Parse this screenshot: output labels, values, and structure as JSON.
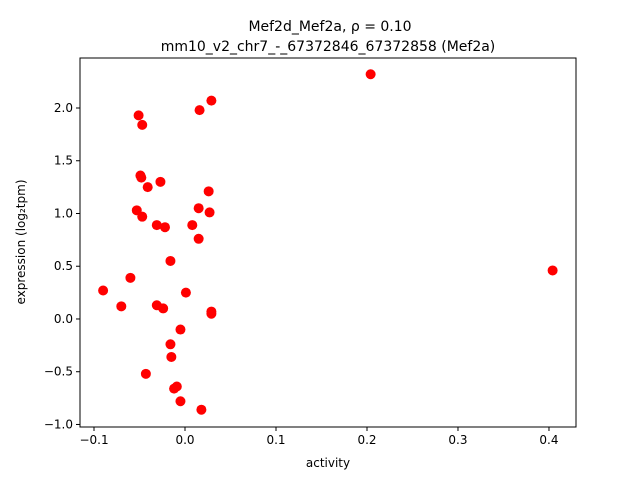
{
  "chart_data": {
    "type": "scatter",
    "title_line1": "Mef2d_Mef2a, ρ = 0.10",
    "title_line2": "mm10_v2_chr7_-_67372846_67372858 (Mef2a)",
    "xlabel": "activity",
    "ylabel": "expression (log₂tpm)",
    "xlim": [
      -0.1154,
      0.4297
    ],
    "ylim": [
      -1.024,
      2.474
    ],
    "xticks": [
      -0.1,
      0.0,
      0.1,
      0.2,
      0.3,
      0.4
    ],
    "xtick_labels": [
      "−0.1",
      "0.0",
      "0.1",
      "0.2",
      "0.3",
      "0.4"
    ],
    "yticks": [
      -1.0,
      -0.5,
      0.0,
      0.5,
      1.0,
      1.5,
      2.0
    ],
    "ytick_labels": [
      "−1.0",
      "−0.5",
      "0.0",
      "0.5",
      "1.0",
      "1.5",
      "2.0"
    ],
    "marker_color": "#ff0000",
    "grid": false,
    "points": [
      [
        0.204,
        2.32
      ],
      [
        0.404,
        0.46
      ],
      [
        0.029,
        2.07
      ],
      [
        0.016,
        1.98
      ],
      [
        -0.051,
        1.93
      ],
      [
        -0.047,
        1.84
      ],
      [
        -0.049,
        1.36
      ],
      [
        -0.048,
        1.34
      ],
      [
        -0.041,
        1.25
      ],
      [
        -0.027,
        1.3
      ],
      [
        0.026,
        1.21
      ],
      [
        -0.053,
        1.03
      ],
      [
        -0.047,
        0.97
      ],
      [
        0.015,
        1.05
      ],
      [
        0.027,
        1.01
      ],
      [
        -0.031,
        0.89
      ],
      [
        -0.022,
        0.87
      ],
      [
        0.008,
        0.89
      ],
      [
        0.015,
        0.76
      ],
      [
        -0.016,
        0.55
      ],
      [
        -0.06,
        0.39
      ],
      [
        -0.09,
        0.27
      ],
      [
        -0.07,
        0.12
      ],
      [
        -0.031,
        0.13
      ],
      [
        -0.024,
        0.1
      ],
      [
        0.001,
        0.25
      ],
      [
        0.029,
        0.07
      ],
      [
        0.029,
        0.05
      ],
      [
        -0.005,
        -0.1
      ],
      [
        -0.016,
        -0.24
      ],
      [
        -0.015,
        -0.36
      ],
      [
        -0.043,
        -0.52
      ],
      [
        -0.009,
        -0.64
      ],
      [
        -0.012,
        -0.66
      ],
      [
        -0.005,
        -0.78
      ],
      [
        0.018,
        -0.86
      ]
    ]
  }
}
